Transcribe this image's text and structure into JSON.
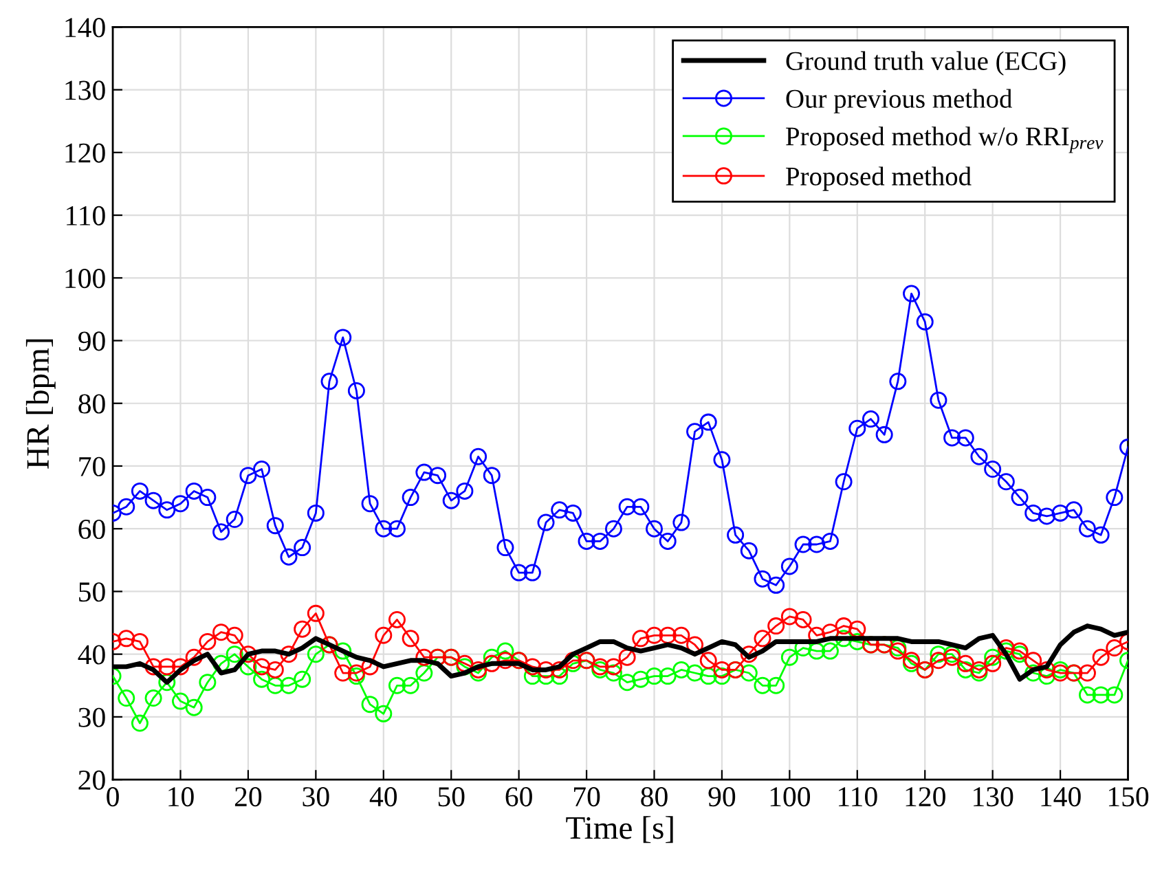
{
  "chart_data": {
    "type": "line",
    "xlabel": "Time [s]",
    "ylabel": "HR [bpm]",
    "x": [
      0,
      2,
      4,
      6,
      8,
      10,
      12,
      14,
      16,
      18,
      20,
      22,
      24,
      26,
      28,
      30,
      32,
      34,
      36,
      38,
      40,
      42,
      44,
      46,
      48,
      50,
      52,
      54,
      56,
      58,
      60,
      62,
      64,
      66,
      68,
      70,
      72,
      74,
      76,
      78,
      80,
      82,
      84,
      86,
      88,
      90,
      92,
      94,
      96,
      98,
      100,
      102,
      104,
      106,
      108,
      110,
      112,
      114,
      116,
      118,
      120,
      122,
      124,
      126,
      128,
      130,
      132,
      134,
      136,
      138,
      140,
      142,
      144,
      146,
      148,
      150
    ],
    "xlim": [
      0,
      150
    ],
    "xticks": [
      0,
      10,
      20,
      30,
      40,
      50,
      60,
      70,
      80,
      90,
      100,
      110,
      120,
      130,
      140,
      150
    ],
    "ylim": [
      20,
      140
    ],
    "yticks": [
      20,
      30,
      40,
      50,
      60,
      70,
      80,
      90,
      100,
      110,
      120,
      130,
      140
    ],
    "grid": true,
    "legend": "top right",
    "line_style": "solid",
    "series": [
      {
        "name": "Ground truth value (ECG)",
        "color": "#000000",
        "marker": "none",
        "values": [
          38,
          38,
          38.5,
          37.5,
          35.5,
          37.5,
          39,
          40,
          37,
          37.5,
          40,
          40.5,
          40.5,
          40,
          41,
          42.5,
          41.5,
          40.5,
          39.5,
          39,
          38,
          38.5,
          39,
          39,
          38.5,
          36.5,
          37,
          38,
          38.5,
          38.5,
          38.5,
          37.5,
          37.5,
          38,
          40,
          41,
          42,
          42,
          41,
          40.5,
          41,
          41.5,
          41,
          40,
          41,
          42,
          41.5,
          39.5,
          40.5,
          42,
          42,
          42,
          42,
          42.5,
          42.5,
          42.5,
          42.5,
          42.5,
          42.5,
          42,
          42,
          42,
          41.5,
          41,
          42.5,
          43,
          40,
          36,
          37.5,
          38,
          41.5,
          43.5,
          44.5,
          44,
          43,
          43.5
        ]
      },
      {
        "name": "Our previous method",
        "color": "#0000ff",
        "marker": "circle",
        "values": [
          62.5,
          63.5,
          66,
          64.5,
          63,
          64,
          66,
          65,
          59.5,
          61.5,
          68.5,
          69.5,
          60.5,
          55.5,
          57,
          62.5,
          83.5,
          90.5,
          82,
          64,
          60,
          60,
          65,
          69,
          68.5,
          64.5,
          66,
          71.5,
          68.5,
          57,
          53,
          53,
          61,
          63,
          62.5,
          58,
          58,
          60,
          63.5,
          63.5,
          60,
          58,
          61,
          75.5,
          77,
          71,
          59,
          56.5,
          52,
          51,
          54,
          57.5,
          57.5,
          58,
          67.5,
          76,
          77.5,
          75,
          83.5,
          97.5,
          93,
          80.5,
          74.5,
          74.5,
          71.5,
          69.5,
          67.5,
          65,
          62.5,
          62,
          62.5,
          63,
          60,
          59,
          65,
          73
        ]
      },
      {
        "name": "Proposed method w/o RRI$_{prev}$",
        "color": "#00ff00",
        "marker": "circle",
        "values": [
          36.5,
          33,
          29,
          33,
          35.5,
          32.5,
          31.5,
          35.5,
          38.5,
          40,
          38,
          36,
          35,
          35,
          36,
          40,
          41.5,
          40.5,
          36.5,
          32,
          30.5,
          35,
          35,
          37,
          39.5,
          39.5,
          38,
          37,
          39.5,
          40.5,
          39,
          36.5,
          36.5,
          36.5,
          38.5,
          39,
          37.5,
          37,
          35.5,
          36,
          36.5,
          36.5,
          37.5,
          37,
          36.5,
          36.5,
          37.5,
          37,
          35,
          35,
          39.5,
          41,
          40.5,
          40.5,
          42.5,
          42,
          41.5,
          41.5,
          41,
          38.5,
          37.5,
          40,
          40,
          37.5,
          37,
          39.5,
          40.5,
          40,
          37,
          36.5,
          37.5,
          37,
          33.5,
          33.5,
          33.5,
          39
        ]
      },
      {
        "name": "Proposed method",
        "color": "#ff0000",
        "marker": "circle",
        "values": [
          42,
          42.5,
          42,
          38,
          38,
          38,
          39.5,
          42,
          43.5,
          43,
          40,
          38,
          37.5,
          40,
          44,
          46.5,
          41.5,
          37,
          37,
          38,
          43,
          45.5,
          42.5,
          39.5,
          39.5,
          39.5,
          38.5,
          37.5,
          38.5,
          39,
          39,
          38,
          37.5,
          37.5,
          39,
          39,
          38,
          38,
          39.5,
          42.5,
          43,
          43,
          43,
          41.5,
          39,
          37.5,
          37.5,
          40,
          42.5,
          44.5,
          46,
          45.5,
          43,
          43.5,
          44.5,
          44,
          41.5,
          41.5,
          40.5,
          39,
          37.5,
          39,
          39.5,
          38.5,
          37.5,
          38.5,
          41,
          40.5,
          39,
          37.5,
          37,
          37,
          37,
          39.5,
          41,
          42
        ]
      }
    ]
  }
}
